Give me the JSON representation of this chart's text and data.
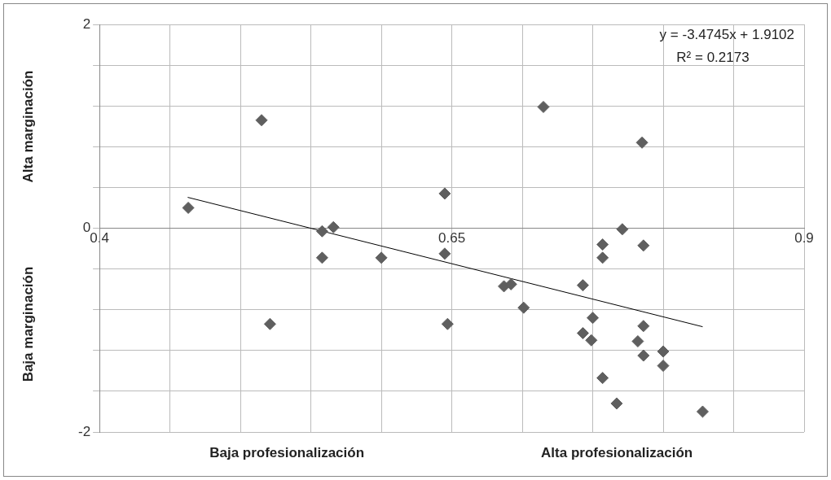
{
  "chart_data": {
    "type": "scatter",
    "xlim": [
      0.4,
      0.9
    ],
    "ylim": [
      -2,
      2
    ],
    "xticks": [
      0.4,
      {
        "value": 0.45,
        "label": null
      },
      {
        "value": 0.5,
        "label": null
      },
      {
        "value": 0.55,
        "label": null
      },
      {
        "value": 0.6,
        "label": null
      },
      0.65,
      {
        "value": 0.7,
        "label": null
      },
      {
        "value": 0.75,
        "label": null
      },
      {
        "value": 0.8,
        "label": null
      },
      {
        "value": 0.85,
        "label": null
      },
      0.9
    ],
    "yticks": [
      -2,
      {
        "value": -1.6,
        "label": null
      },
      {
        "value": -1.2,
        "label": null
      },
      {
        "value": -0.8,
        "label": null
      },
      {
        "value": -0.4,
        "label": null
      },
      0,
      {
        "value": 0.4,
        "label": null
      },
      {
        "value": 0.8,
        "label": null
      },
      {
        "value": 1.2,
        "label": null
      },
      {
        "value": 1.6,
        "label": null
      },
      2
    ],
    "grid": true,
    "legend": false,
    "marker": "diamond",
    "series": [
      {
        "color": "#5f5f5f",
        "x": [
          0.463,
          0.515,
          0.521,
          0.558,
          0.566,
          0.558,
          0.6,
          0.645,
          0.645,
          0.647,
          0.687,
          0.692,
          0.701,
          0.715,
          0.743,
          0.743,
          0.749,
          0.75,
          0.757,
          0.757,
          0.757,
          0.767,
          0.771,
          0.785,
          0.786,
          0.786,
          0.782,
          0.786,
          0.8,
          0.8,
          0.828
        ],
        "values": [
          0.2,
          1.06,
          -0.94,
          -0.03,
          0.01,
          -0.29,
          -0.29,
          0.34,
          -0.25,
          -0.94,
          -0.57,
          -0.55,
          -0.78,
          1.19,
          -0.56,
          -1.03,
          -1.1,
          -0.88,
          -0.16,
          -0.29,
          -1.47,
          -1.72,
          -0.01,
          0.84,
          -0.17,
          -0.96,
          -1.11,
          -1.25,
          -1.21,
          -1.35,
          -1.8
        ]
      },
      {
        "type": "line",
        "color": "#000000",
        "marker": "none",
        "x": [
          0.4626,
          0.828
        ],
        "values": [
          0.303,
          -0.967
        ]
      }
    ],
    "annotations": [
      "y = -3.4745x + 1.9102",
      "R² = 0.2173",
      "Baja profesionalización",
      "Alta profesionalización",
      "Baja marginación",
      "Alta marginación"
    ]
  }
}
